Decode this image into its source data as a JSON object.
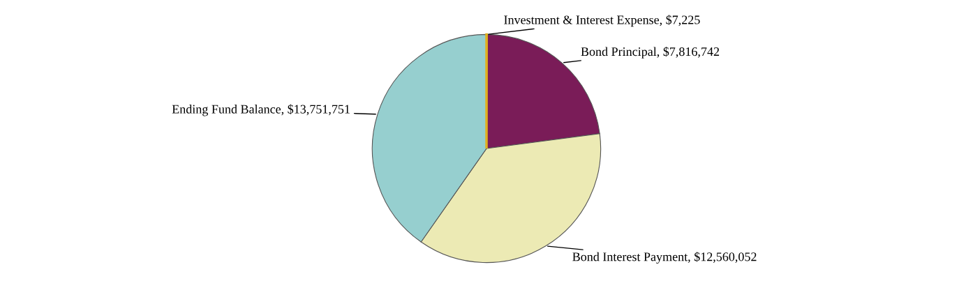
{
  "chart_data": {
    "type": "pie",
    "categories": [
      "Investment & Interest Expense",
      "Bond Principal",
      "Bond Interest Payment",
      "Ending Fund Balance"
    ],
    "values": [
      7225,
      7816742,
      12560052,
      13751751
    ],
    "value_labels": [
      "$7,225",
      "$7,816,742",
      "$12,560,052",
      "$13,751,751"
    ],
    "colors": [
      "#e0b020",
      "#7a1c58",
      "#eceab4",
      "#96cfcf"
    ],
    "legend": false
  }
}
